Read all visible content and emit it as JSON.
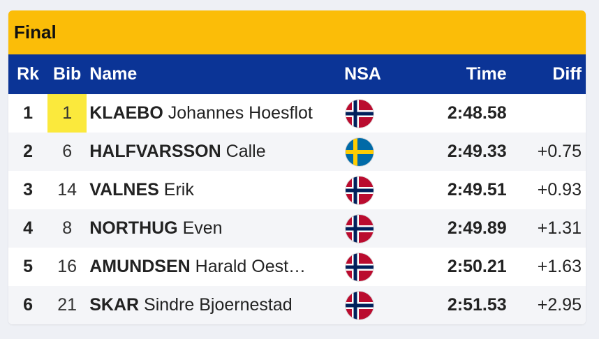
{
  "title": "Final",
  "columns": {
    "rk": "Rk",
    "bib": "Bib",
    "name": "Name",
    "nsa": "NSA",
    "time": "Time",
    "diff": "Diff"
  },
  "flags": {
    "NOR": {
      "field": "#ba0c2f",
      "cross_outer": "#ffffff",
      "cross_inner": "#00205b"
    },
    "SWE": {
      "field": "#006aa7",
      "cross": "#fecc02"
    }
  },
  "highlight_color": "#fbe93c",
  "rows": [
    {
      "rk": "1",
      "bib": "1",
      "surname": "KLAEBO",
      "given": "Johannes Hoesflot",
      "nsa": "NOR",
      "time": "2:48.58",
      "diff": ""
    },
    {
      "rk": "2",
      "bib": "6",
      "surname": "HALFVARSSON",
      "given": "Calle",
      "nsa": "SWE",
      "time": "2:49.33",
      "diff": "+0.75"
    },
    {
      "rk": "3",
      "bib": "14",
      "surname": "VALNES",
      "given": "Erik",
      "nsa": "NOR",
      "time": "2:49.51",
      "diff": "+0.93"
    },
    {
      "rk": "4",
      "bib": "8",
      "surname": "NORTHUG",
      "given": "Even",
      "nsa": "NOR",
      "time": "2:49.89",
      "diff": "+1.31"
    },
    {
      "rk": "5",
      "bib": "16",
      "surname": "AMUNDSEN",
      "given": "Harald Oest…",
      "nsa": "NOR",
      "time": "2:50.21",
      "diff": "+1.63"
    },
    {
      "rk": "6",
      "bib": "21",
      "surname": "SKAR",
      "given": "Sindre Bjoernestad",
      "nsa": "NOR",
      "time": "2:51.53",
      "diff": "+2.95"
    }
  ]
}
